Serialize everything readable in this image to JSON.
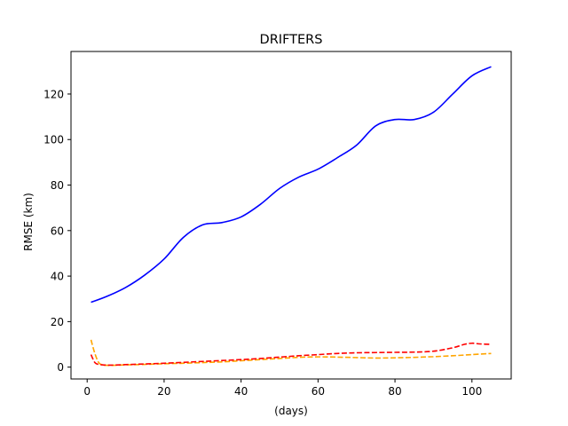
{
  "chart_data": {
    "type": "line",
    "title": "DRIFTERS",
    "xlabel": "(days)",
    "ylabel": "RMSE (km)",
    "xlim": [
      -4.2,
      110.2
    ],
    "ylim": [
      -5.2,
      138.7
    ],
    "x_ticks": [
      0,
      20,
      40,
      60,
      80,
      100
    ],
    "y_ticks": [
      0,
      20,
      40,
      60,
      80,
      100,
      120
    ],
    "grid": false,
    "series": [
      {
        "color": "#0000ff",
        "style": "solid",
        "x": [
          1,
          5,
          10,
          15,
          20,
          25,
          30,
          35,
          40,
          45,
          50,
          55,
          60,
          65,
          70,
          75,
          80,
          85,
          90,
          95,
          100,
          105
        ],
        "values": [
          28.5,
          31.0,
          35.0,
          40.5,
          47.5,
          57.0,
          62.5,
          63.5,
          66.0,
          71.5,
          78.5,
          83.5,
          87.0,
          92.0,
          97.5,
          106.0,
          108.8,
          108.8,
          112.0,
          120.0,
          128.0,
          132.0
        ]
      },
      {
        "color": "#ffa500",
        "style": "dashed",
        "x": [
          1,
          2,
          3,
          4,
          5,
          7,
          10,
          15,
          20,
          25,
          30,
          35,
          40,
          45,
          50,
          55,
          60,
          65,
          70,
          75,
          80,
          85,
          90,
          95,
          100,
          105
        ],
        "values": [
          12.0,
          6.0,
          2.0,
          1.0,
          0.8,
          0.8,
          1.0,
          1.2,
          1.5,
          1.7,
          2.0,
          2.3,
          2.8,
          3.3,
          3.8,
          4.3,
          4.5,
          4.4,
          4.2,
          4.0,
          4.1,
          4.3,
          4.6,
          5.0,
          5.5,
          6.0
        ]
      },
      {
        "color": "#ff0000",
        "style": "dashed",
        "x": [
          1,
          2,
          3,
          4,
          5,
          7,
          10,
          15,
          20,
          25,
          30,
          35,
          40,
          45,
          50,
          55,
          60,
          65,
          70,
          75,
          80,
          85,
          90,
          95,
          98,
          100,
          102,
          105
        ],
        "values": [
          5.5,
          2.0,
          1.2,
          1.0,
          0.9,
          0.9,
          1.1,
          1.4,
          1.7,
          2.1,
          2.5,
          2.9,
          3.3,
          3.8,
          4.4,
          5.0,
          5.5,
          6.0,
          6.3,
          6.4,
          6.5,
          6.6,
          7.0,
          8.5,
          10.0,
          10.5,
          10.2,
          10.0
        ]
      }
    ]
  }
}
